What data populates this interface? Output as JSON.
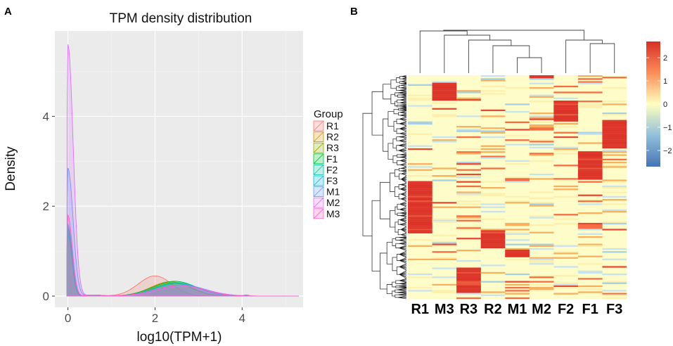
{
  "panels": {
    "a_letter": "A",
    "b_letter": "B"
  },
  "chart_data": [
    {
      "type": "area",
      "title": "TPM density distribution",
      "xlabel": "log10(TPM+1)",
      "ylabel": "Density",
      "xlim": [
        -0.3,
        5.4
      ],
      "ylim": [
        -0.25,
        5.9
      ],
      "x_ticks": [
        0,
        2,
        4
      ],
      "y_ticks": [
        0,
        2,
        4
      ],
      "legend": {
        "title": "Group",
        "position": "right"
      },
      "series": [
        {
          "name": "R1",
          "color": "#F8766D",
          "peak0": 1.55,
          "mu": 2.0,
          "sigma": 0.38,
          "peak2": 0.45
        },
        {
          "name": "R2",
          "color": "#D39200",
          "peak0": 1.45,
          "mu": 2.35,
          "sigma": 0.45,
          "peak2": 0.32
        },
        {
          "name": "R3",
          "color": "#93AA00",
          "peak0": 1.35,
          "mu": 2.4,
          "sigma": 0.45,
          "peak2": 0.3
        },
        {
          "name": "F1",
          "color": "#00BA38",
          "peak0": 1.5,
          "mu": 2.45,
          "sigma": 0.5,
          "peak2": 0.33
        },
        {
          "name": "F2",
          "color": "#00C19F",
          "peak0": 1.4,
          "mu": 2.5,
          "sigma": 0.5,
          "peak2": 0.3
        },
        {
          "name": "F3",
          "color": "#00B9E3",
          "peak0": 1.6,
          "mu": 2.5,
          "sigma": 0.5,
          "peak2": 0.28
        },
        {
          "name": "M1",
          "color": "#619CFF",
          "peak0": 2.85,
          "mu": 2.6,
          "sigma": 0.55,
          "peak2": 0.25
        },
        {
          "name": "M2",
          "color": "#DB72FB",
          "peak0": 5.6,
          "mu": 2.65,
          "sigma": 0.55,
          "peak2": 0.22
        },
        {
          "name": "M3",
          "color": "#FF61C3",
          "peak0": 1.8,
          "mu": 2.55,
          "sigma": 0.55,
          "peak2": 0.24
        }
      ]
    },
    {
      "type": "heatmap",
      "columns": [
        "R1",
        "M3",
        "R3",
        "R2",
        "M1",
        "M2",
        "F2",
        "F1",
        "F3"
      ],
      "color_scale": {
        "min": -2.7,
        "max": 2.7,
        "ticks": [
          2,
          1,
          0,
          -1,
          -2
        ],
        "tick_labels": [
          "2",
          "1",
          "0",
          "−1",
          "−2"
        ],
        "low": "#4575B4",
        "mid": "#FFFFBF",
        "high": "#D73027"
      },
      "column_dendrogram": true,
      "row_dendrogram": true,
      "high_blocks": [
        {
          "column": "R1",
          "row_range": [
            0.47,
            0.7
          ]
        },
        {
          "column": "M3",
          "row_range": [
            0.03,
            0.11
          ]
        },
        {
          "column": "R3",
          "row_range": [
            0.86,
            0.97
          ]
        },
        {
          "column": "R2",
          "row_range": [
            0.69,
            0.77
          ]
        },
        {
          "column": "M1",
          "row_range": [
            0.78,
            0.81
          ]
        },
        {
          "column": "M2",
          "row_range": [
            0.0,
            0.012
          ]
        },
        {
          "column": "F2",
          "row_range": [
            0.11,
            0.2
          ]
        },
        {
          "column": "F1",
          "row_range": [
            0.34,
            0.46
          ]
        },
        {
          "column": "F3",
          "row_range": [
            0.2,
            0.32
          ]
        }
      ]
    }
  ]
}
